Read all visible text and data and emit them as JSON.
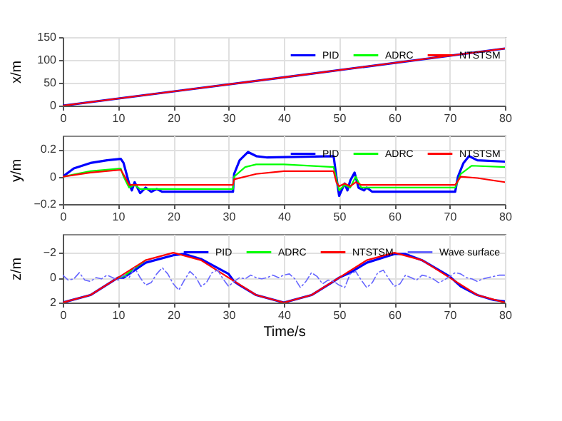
{
  "chart_data": [
    {
      "type": "line",
      "ylabel": "x/m",
      "xlim": [
        0,
        80
      ],
      "xticks": [
        0,
        10,
        20,
        30,
        40,
        50,
        60,
        70,
        80
      ],
      "ylim": [
        0,
        150
      ],
      "yticks": [
        0,
        50,
        100,
        150
      ],
      "grid": true,
      "legend": "top right",
      "series": [
        {
          "name": "PID",
          "color": "#0000ff",
          "x": [
            0,
            40,
            80
          ],
          "values": [
            0,
            62,
            125
          ]
        },
        {
          "name": "ADRC",
          "color": "#00ff00",
          "values": [
            null,
            null,
            null
          ]
        },
        {
          "name": "NTSTSM",
          "color": "#ff0000",
          "x": [
            0,
            40,
            80
          ],
          "values": [
            0,
            62,
            125
          ]
        }
      ]
    },
    {
      "type": "line",
      "ylabel": "y/m",
      "xlim": [
        0,
        80
      ],
      "xticks": [
        0,
        10,
        20,
        30,
        40,
        50,
        60,
        70,
        80
      ],
      "ylim": [
        -0.2,
        0.3
      ],
      "yticks": [
        -0.2,
        {
          "value": 0,
          "label": "0"
        },
        0.2
      ],
      "grid": true,
      "legend": "top right",
      "series": [
        {
          "name": "PID",
          "color": "#0000ff",
          "x": [
            0,
            2,
            5,
            8,
            10.5,
            11,
            12,
            12.5,
            13,
            14,
            15,
            16,
            17,
            18,
            20,
            30.8,
            31,
            32,
            33.5,
            35,
            37,
            49,
            49.5,
            50,
            51,
            51.5,
            52,
            52.8,
            53.5,
            54.5,
            55,
            56,
            71,
            71.5,
            72.5,
            73.5,
            75,
            80
          ],
          "values": [
            0,
            0.06,
            0.1,
            0.12,
            0.13,
            0.1,
            -0.05,
            -0.1,
            -0.04,
            -0.12,
            -0.08,
            -0.11,
            -0.09,
            -0.11,
            -0.11,
            -0.11,
            0.02,
            0.12,
            0.18,
            0.15,
            0.14,
            0.15,
            0,
            -0.14,
            -0.05,
            -0.1,
            -0.03,
            0.03,
            -0.08,
            -0.1,
            -0.08,
            -0.11,
            -0.11,
            0,
            0.1,
            0.15,
            0.12,
            0.11
          ]
        },
        {
          "name": "ADRC",
          "color": "#00ff00",
          "x": [
            0,
            5,
            10.5,
            11,
            12,
            13,
            14,
            30.8,
            31,
            33,
            35,
            40,
            49,
            50,
            51,
            52,
            53,
            54,
            71,
            72,
            74,
            80
          ],
          "values": [
            0,
            0.04,
            0.06,
            0,
            -0.08,
            -0.06,
            -0.09,
            -0.09,
            0,
            0.07,
            0.09,
            0.09,
            0.07,
            -0.1,
            -0.06,
            -0.08,
            0,
            -0.08,
            -0.08,
            0.02,
            0.08,
            0.07
          ]
        },
        {
          "name": "NTSTSM",
          "color": "#ff0000",
          "x": [
            0,
            5,
            10.5,
            11.5,
            12,
            30.8,
            31,
            35,
            40,
            49,
            49.5,
            50,
            51,
            52,
            53,
            54,
            71,
            72,
            75,
            80
          ],
          "values": [
            0,
            0.03,
            0.05,
            -0.02,
            -0.06,
            -0.06,
            -0.02,
            0.02,
            0.04,
            0.04,
            -0.04,
            -0.07,
            -0.05,
            -0.07,
            -0.04,
            -0.06,
            -0.06,
            0,
            -0.01,
            -0.04
          ]
        }
      ]
    },
    {
      "type": "line",
      "xlabel": "Time/s",
      "ylabel": "z/m",
      "xlim": [
        0,
        80
      ],
      "xticks": [
        0,
        10,
        20,
        30,
        40,
        50,
        60,
        70,
        80
      ],
      "ylim": [
        2,
        -3.5
      ],
      "yticks": [
        -2,
        0,
        2
      ],
      "grid": true,
      "legend": "top right",
      "series": [
        {
          "name": "PID",
          "color": "#0000ff",
          "x": [
            0,
            5,
            10,
            11,
            12,
            15,
            20,
            22,
            25,
            30,
            31,
            32,
            35,
            40,
            45,
            49,
            50,
            52,
            55,
            60,
            62,
            65,
            70,
            71,
            72,
            75,
            78,
            80
          ],
          "values": [
            2,
            1.4,
            0,
            0,
            -0.3,
            -1.2,
            -1.8,
            -1.9,
            -1.5,
            -0.3,
            0.3,
            0.6,
            1.4,
            2,
            1.4,
            0.3,
            0,
            -0.4,
            -1.2,
            -1.9,
            -1.9,
            -1.4,
            -0.1,
            0.3,
            0.7,
            1.4,
            1.8,
            1.9
          ]
        },
        {
          "name": "ADRC",
          "color": "#00ff00",
          "x": [
            10,
            11,
            15
          ],
          "values": [
            0,
            -0.1,
            -1.4
          ]
        },
        {
          "name": "NTSTSM",
          "color": "#ff0000",
          "x": [
            0,
            5,
            10,
            15,
            20,
            25,
            30,
            35,
            40,
            45,
            50,
            55,
            60,
            65,
            70,
            75,
            80
          ],
          "values": [
            2,
            1.4,
            0,
            -1.4,
            -2,
            -1.4,
            0,
            1.4,
            2,
            1.4,
            0,
            -1.4,
            -2,
            -1.4,
            0,
            1.4,
            2
          ]
        },
        {
          "name": "Wave surface",
          "color": "#6666ff",
          "line_style": "dashed",
          "x": [
            0,
            1,
            2,
            3,
            4,
            5,
            6,
            7,
            8,
            9,
            10,
            11,
            12,
            13,
            14,
            15,
            16,
            17,
            18,
            19,
            20,
            21,
            22,
            23,
            24,
            25,
            26,
            27,
            28,
            29,
            30,
            31,
            32,
            33,
            34,
            35,
            36,
            37,
            38,
            39,
            40,
            41,
            42,
            43,
            44,
            45,
            46,
            47,
            48,
            49,
            50,
            51,
            52,
            53,
            54,
            55,
            56,
            57,
            58,
            59,
            60,
            61,
            62,
            63,
            64,
            65,
            66,
            67,
            68,
            69,
            70,
            71,
            72,
            73,
            74,
            75,
            76,
            77,
            78,
            79,
            80
          ],
          "values": [
            -0.2,
            0.2,
            0.1,
            -0.4,
            0.2,
            0.3,
            0,
            0.1,
            -0.2,
            0,
            0.2,
            -0.2,
            0,
            -0.8,
            0,
            0.6,
            0.4,
            -0.3,
            -0.8,
            -0.3,
            0.5,
            1,
            0.2,
            -0.5,
            -0.1,
            0.7,
            0.4,
            -0.4,
            -0.6,
            0.1,
            0.7,
            0.3,
            0,
            0.1,
            -0.2,
            0,
            0.1,
            0,
            -0.2,
            0,
            -0.2,
            -0.3,
            0.1,
            0.8,
            0.3,
            -0.4,
            -0.1,
            0.5,
            0.2,
            0.3,
            0.6,
            0.8,
            -0.3,
            -0.5,
            0.2,
            0.8,
            0.4,
            -0.4,
            -0.6,
            0.1,
            0.7,
            0.5,
            -0.2,
            0,
            0.2,
            -0.2,
            -0.1,
            0.1,
            0.4,
            0.2,
            -0.1,
            -0.4,
            -0.3,
            0,
            0.1,
            0.3,
            0.1,
            0,
            -0.1,
            -0.2,
            -0.2
          ]
        }
      ]
    }
  ]
}
